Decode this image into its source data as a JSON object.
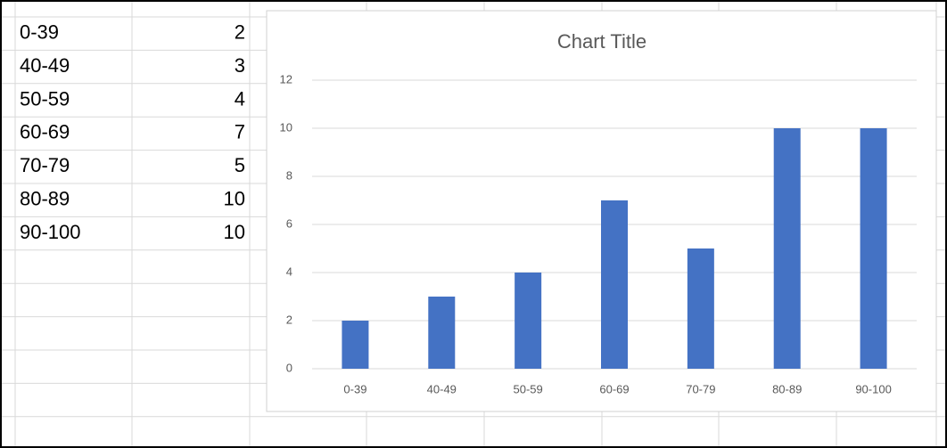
{
  "chart_data": {
    "type": "bar",
    "title": "Chart Title",
    "categories": [
      "0-39",
      "40-49",
      "50-59",
      "60-69",
      "70-79",
      "80-89",
      "90-100"
    ],
    "values": [
      2,
      3,
      4,
      7,
      5,
      10,
      10
    ],
    "color": "#4472c4",
    "ylim": [
      0,
      12
    ],
    "yticks": [
      0,
      2,
      4,
      6,
      8,
      10,
      12
    ],
    "grid": true
  }
}
